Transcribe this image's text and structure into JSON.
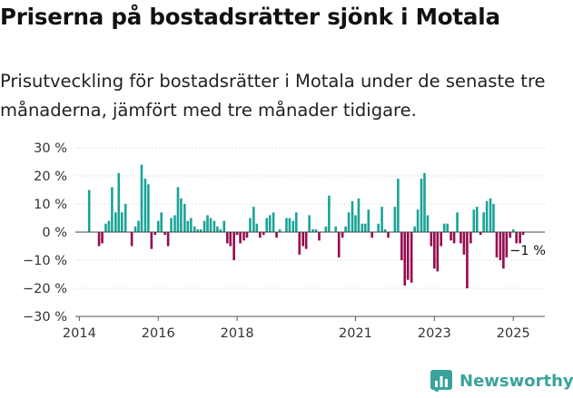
{
  "header": {
    "title": "Priserna på bostadsrätter sjönk i Motala",
    "subtitle": "Prisutveckling för bostadsrätter i Motala under de senaste tre månaderna, jämfört med tre månader tidigare."
  },
  "brand": {
    "name": "Newsworthy",
    "color": "#3aa39c",
    "icon": "bar-chart-logo-icon"
  },
  "colors": {
    "positive": "#1aa398",
    "negative": "#950a4e",
    "grid": "#d9d9d9",
    "axis": "#333333"
  },
  "chart_data": {
    "type": "bar",
    "ylim": [
      -30,
      30
    ],
    "yticks": [
      30,
      20,
      10,
      0,
      -10,
      -20,
      -30
    ],
    "ytick_labels": [
      "30 %",
      "20 %",
      "10 %",
      "0 %",
      "−10 %",
      "−20 %",
      "−30 %"
    ],
    "xlim": [
      2013.9,
      2025.8
    ],
    "xticks": [
      2014,
      2016,
      2018,
      2021,
      2023,
      2025
    ],
    "xtick_labels": [
      "2014",
      "2016",
      "2018",
      "2021",
      "2023",
      "2025"
    ],
    "grid": true,
    "annotation": {
      "text": "−1 %",
      "x": 2025.0,
      "y": -1
    },
    "series": [
      {
        "x": [
          2014.25,
          2014.5,
          2014.58,
          2014.67,
          2014.75,
          2014.83,
          2014.92,
          2015.0,
          2015.08,
          2015.17,
          2015.25,
          2015.33,
          2015.42,
          2015.5,
          2015.58,
          2015.67,
          2015.75,
          2015.83,
          2015.92,
          2016.0,
          2016.08,
          2016.17,
          2016.25,
          2016.33,
          2016.42,
          2016.5,
          2016.58,
          2016.67,
          2016.75,
          2016.83,
          2016.92,
          2017.0,
          2017.08,
          2017.17,
          2017.25,
          2017.33,
          2017.42,
          2017.5,
          2017.58,
          2017.67,
          2017.75,
          2017.83,
          2017.92,
          2018.0,
          2018.08,
          2018.17,
          2018.25,
          2018.33,
          2018.42,
          2018.5,
          2018.58,
          2018.67,
          2018.75,
          2018.83,
          2018.92,
          2019.0,
          2019.08,
          2019.17,
          2019.25,
          2019.33,
          2019.42,
          2019.5,
          2019.58,
          2019.67,
          2019.75,
          2019.83,
          2019.92,
          2020.0,
          2020.08,
          2020.17,
          2020.25,
          2020.33,
          2020.42,
          2020.5,
          2020.58,
          2020.67,
          2020.75,
          2020.83,
          2020.92,
          2021.0,
          2021.08,
          2021.17,
          2021.25,
          2021.33,
          2021.42,
          2021.5,
          2021.58,
          2021.67,
          2021.75,
          2021.83,
          2021.92,
          2022.0,
          2022.08,
          2022.17,
          2022.25,
          2022.33,
          2022.42,
          2022.5,
          2022.58,
          2022.67,
          2022.75,
          2022.83,
          2022.92,
          2023.0,
          2023.08,
          2023.17,
          2023.25,
          2023.33,
          2023.42,
          2023.5,
          2023.58,
          2023.67,
          2023.75,
          2023.83,
          2023.92,
          2024.0,
          2024.08,
          2024.17,
          2024.25,
          2024.33,
          2024.42,
          2024.5,
          2024.58,
          2024.67,
          2024.75,
          2024.83,
          2024.92,
          2025.0,
          2025.08,
          2025.17,
          2025.25
        ],
        "values": [
          15,
          -5,
          -4,
          3,
          4,
          16,
          7,
          21,
          7,
          10,
          0,
          -5,
          2,
          4,
          24,
          19,
          17,
          -6,
          -1,
          4,
          7,
          -1,
          -5,
          5,
          6,
          16,
          12,
          10,
          4,
          5,
          2,
          1,
          1,
          4,
          6,
          5,
          4,
          2,
          1,
          4,
          -4,
          -5,
          -10,
          -1,
          -4,
          -3,
          -2,
          5,
          9,
          3,
          -2,
          -1,
          5,
          6,
          7,
          -2,
          1,
          0,
          5,
          5,
          4,
          7,
          -8,
          -5,
          -6,
          6,
          1,
          1,
          -3,
          0,
          2,
          13,
          0,
          2,
          -9,
          -2,
          2,
          7,
          11,
          6,
          12,
          3,
          3,
          8,
          -2,
          0,
          3,
          9,
          1,
          -2,
          0,
          9,
          19,
          -10,
          -19,
          -17,
          -18,
          2,
          8,
          19,
          21,
          6,
          -5,
          -13,
          -14,
          -5,
          3,
          3,
          -3,
          -4,
          7,
          -4,
          -8,
          -20,
          -4,
          8,
          9,
          -1,
          7,
          11,
          12,
          10,
          -9,
          -10,
          -13,
          -9,
          -2,
          1,
          -4,
          -4,
          -1
        ]
      }
    ]
  }
}
